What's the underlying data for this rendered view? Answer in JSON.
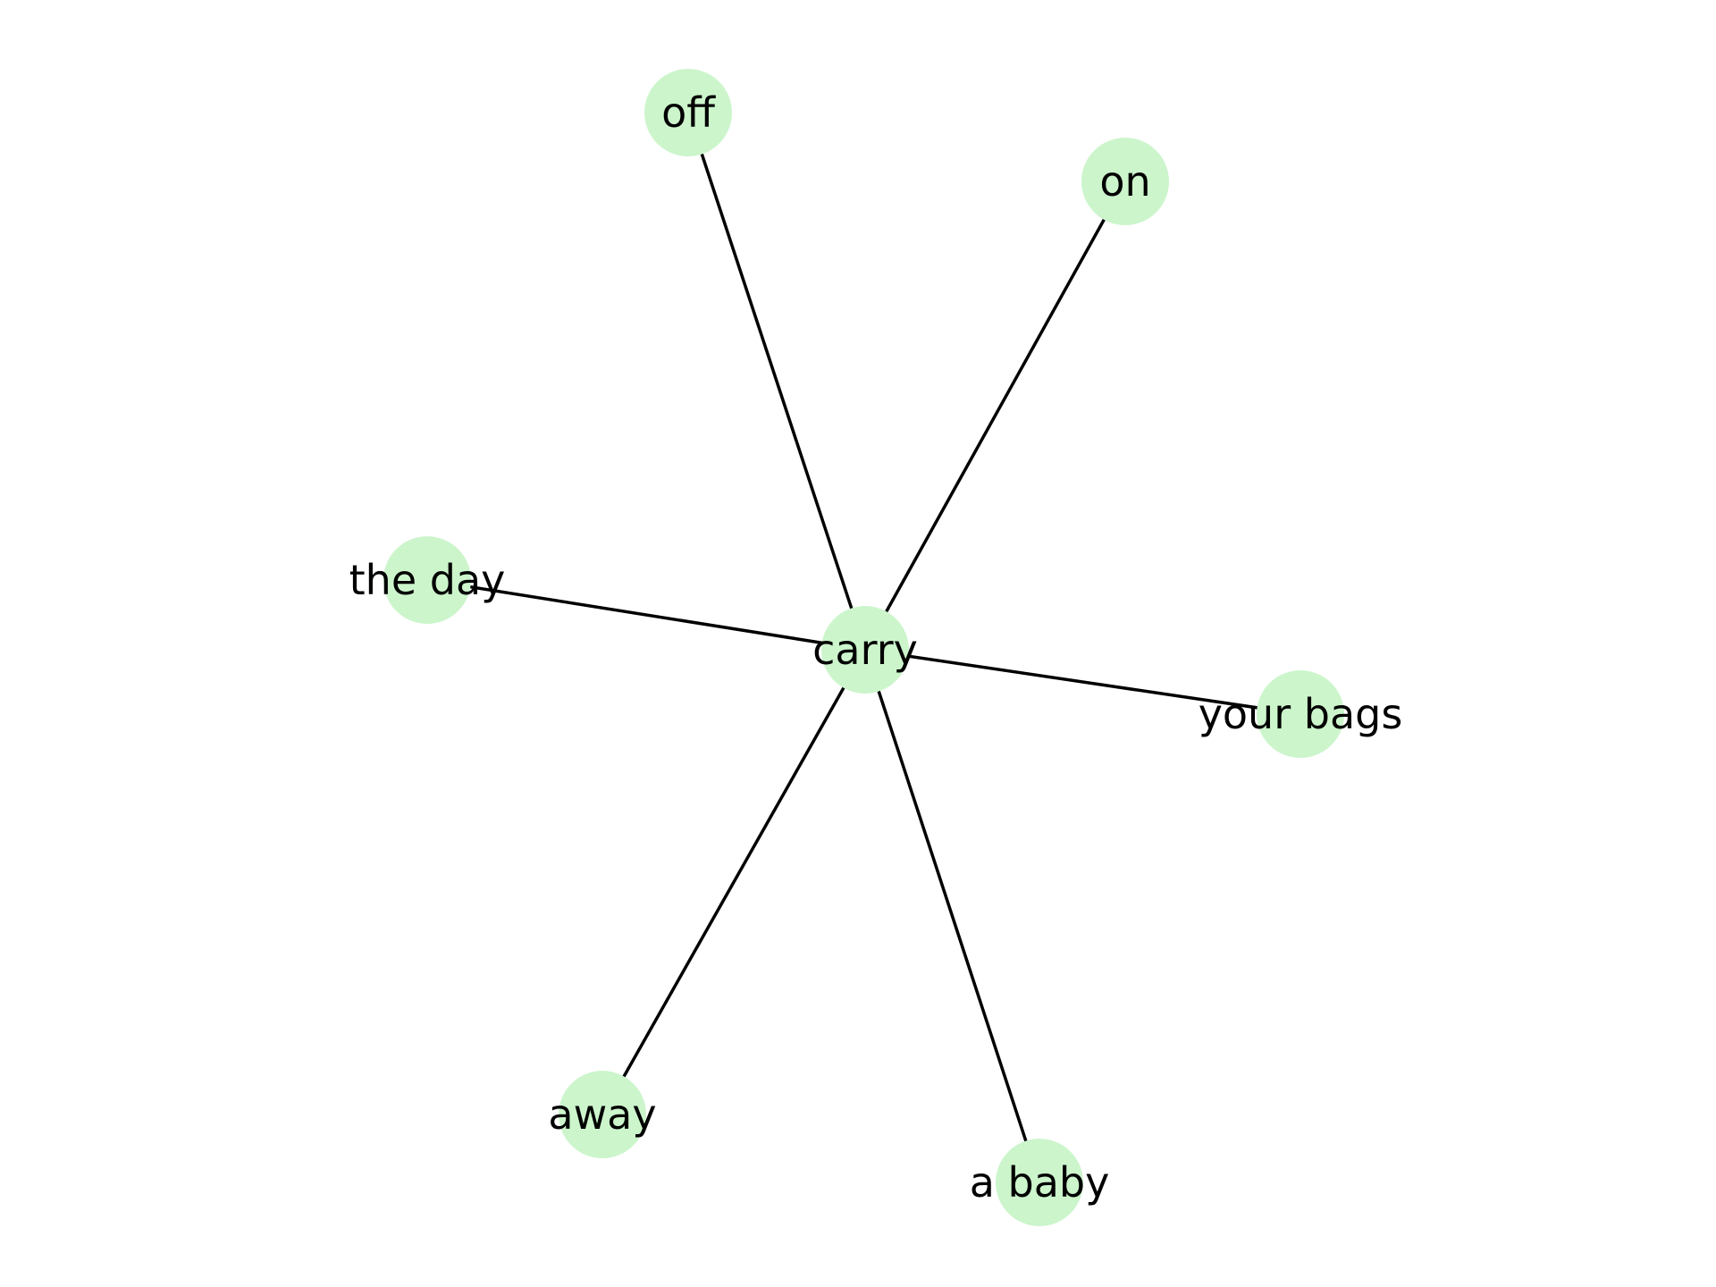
{
  "diagram": {
    "type": "network",
    "center": "carry",
    "node_color": "#ccf5cc",
    "edge_color": "#000000",
    "nodes": [
      {
        "id": "carry",
        "label": "carry"
      },
      {
        "id": "off",
        "label": "off"
      },
      {
        "id": "on",
        "label": "on"
      },
      {
        "id": "the_day",
        "label": "the day"
      },
      {
        "id": "your_bags",
        "label": "your bags"
      },
      {
        "id": "away",
        "label": "away"
      },
      {
        "id": "a_baby",
        "label": "a baby"
      }
    ],
    "edges": [
      {
        "from": "carry",
        "to": "off"
      },
      {
        "from": "carry",
        "to": "on"
      },
      {
        "from": "carry",
        "to": "the_day"
      },
      {
        "from": "carry",
        "to": "your_bags"
      },
      {
        "from": "carry",
        "to": "away"
      },
      {
        "from": "carry",
        "to": "a_baby"
      }
    ]
  }
}
